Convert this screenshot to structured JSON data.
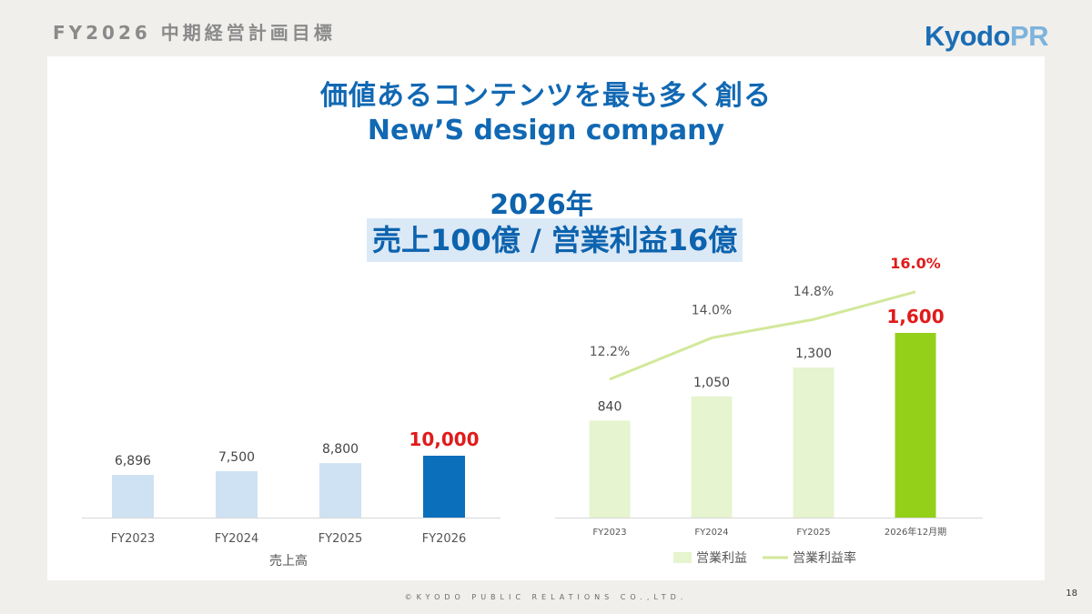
{
  "header": {
    "title": "FY2026 中期経営計画目標"
  },
  "logo": {
    "part1": "Kyodo",
    "part2": "PR"
  },
  "slogan": {
    "jp": "価値あるコンテンツを最も多く創る",
    "en": "New’S design company"
  },
  "goal": {
    "year": "2026年",
    "main": "売上100億 / 営業利益16億"
  },
  "colors": {
    "light_blue": "#cfe2f3",
    "dark_blue": "#0b6fbb",
    "light_green": "#e6f4cf",
    "bright_green": "#94cf1a",
    "line_green": "#d2e89a",
    "highlight_red": "#e01b1b"
  },
  "chart_data": [
    {
      "type": "bar",
      "categories": [
        "FY2023",
        "FY2024",
        "FY2025",
        "FY2026"
      ],
      "values": [
        6896,
        7500,
        8800,
        10000
      ],
      "data_labels": [
        "6,896",
        "7,500",
        "8,800",
        "10,000"
      ],
      "xlabel": "売上高",
      "highlight_index": 3
    },
    {
      "type": "bar",
      "categories": [
        "FY2023",
        "FY2024",
        "FY2025",
        "2026年12月期"
      ],
      "series": [
        {
          "name": "営業利益",
          "type": "bar",
          "values": [
            840,
            1050,
            1300,
            1600
          ],
          "labels": [
            "840",
            "1,050",
            "1,300",
            "1,600"
          ]
        },
        {
          "name": "営業利益率",
          "type": "line",
          "values": [
            12.2,
            14.0,
            14.8,
            16.0
          ],
          "labels": [
            "12.2%",
            "14.0%",
            "14.8%",
            "16.0%"
          ]
        }
      ],
      "highlight_index": 3
    }
  ],
  "footer": {
    "copyright": "©KYODO PUBLIC RELATIONS CO.,LTD.",
    "page": "18"
  }
}
